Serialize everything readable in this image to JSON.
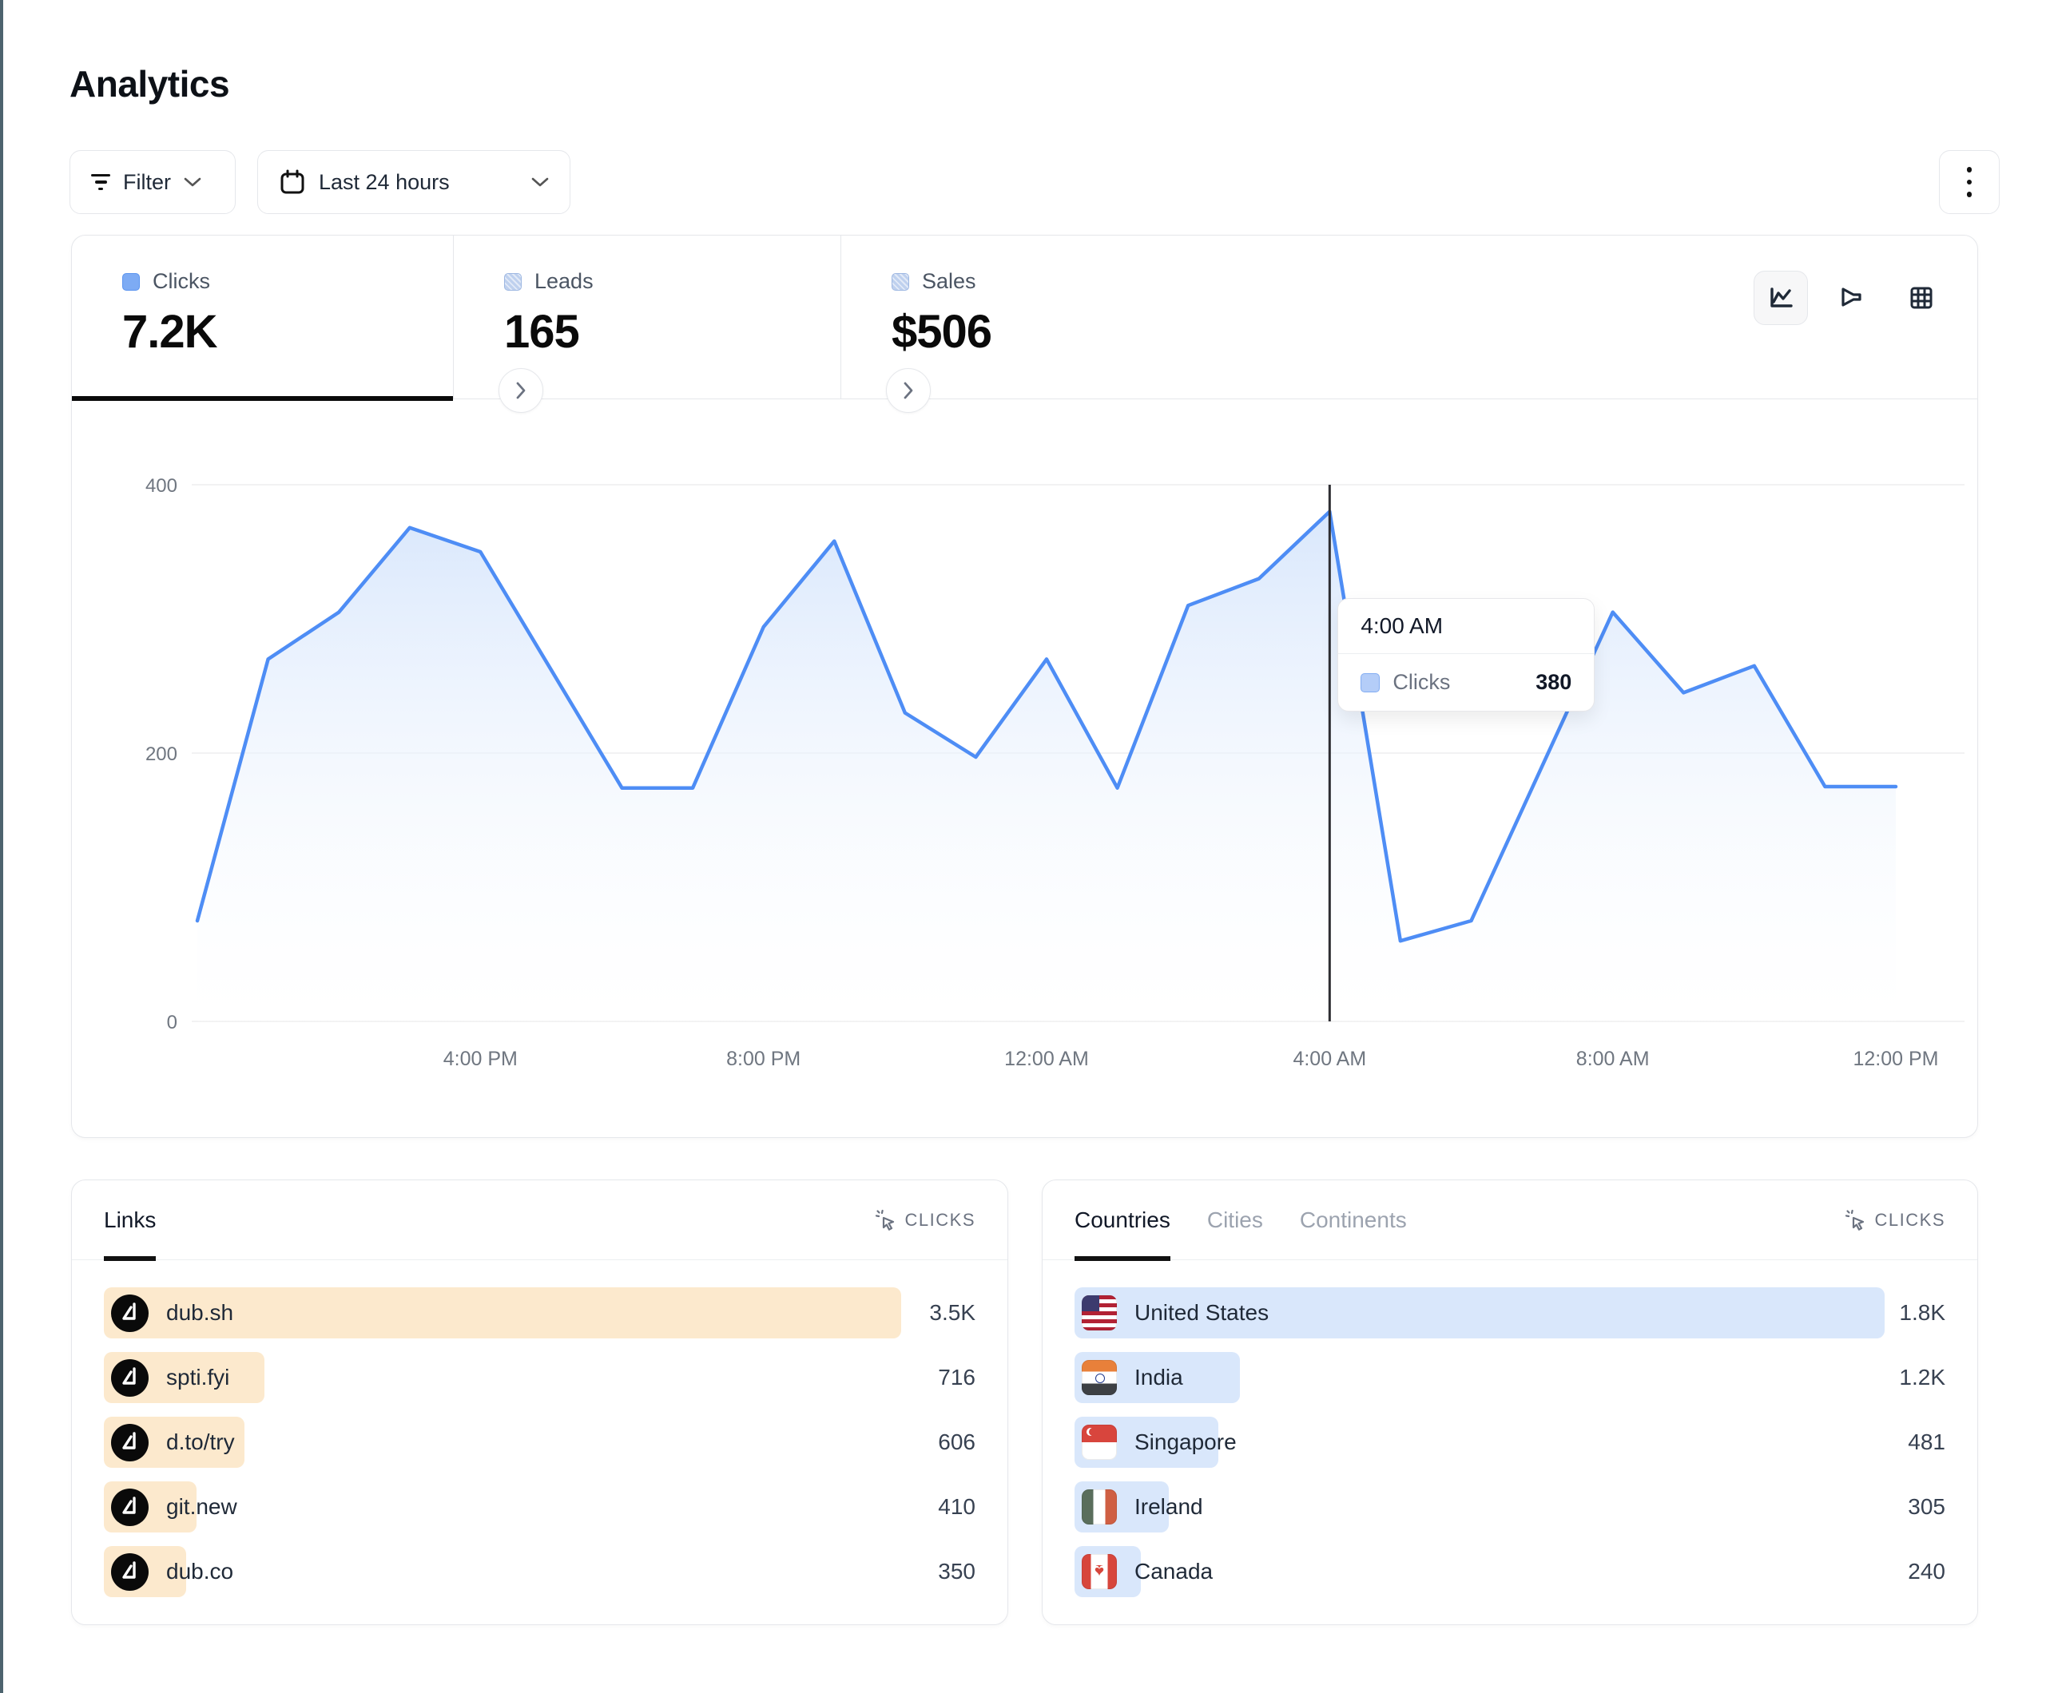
{
  "page": {
    "title": "Analytics"
  },
  "toolbar": {
    "filter_label": "Filter",
    "date_range_label": "Last 24 hours",
    "icons": [
      "filter-lines-icon",
      "calendar-icon",
      "chevron-down-icon",
      "kebab-menu-icon"
    ]
  },
  "stats": {
    "tabs": [
      {
        "label": "Clicks",
        "value": "7.2K",
        "active": true
      },
      {
        "label": "Leads",
        "value": "165",
        "active": false
      },
      {
        "label": "Sales",
        "value": "$506",
        "active": false
      }
    ],
    "view_toggle_icons": [
      "line-chart-icon",
      "funnel-chart-icon",
      "grid-table-icon"
    ],
    "selected_view": "line-chart"
  },
  "chart_data": {
    "type": "area",
    "title": "Clicks over the last 24 hours",
    "series": [
      {
        "name": "Clicks",
        "values": [
          75,
          270,
          305,
          368,
          350,
          262,
          174,
          174,
          294,
          358,
          230,
          197,
          270,
          174,
          310,
          330,
          380,
          60,
          75,
          190,
          305,
          245,
          265,
          175,
          175
        ]
      }
    ],
    "x_start_label": "12:00 PM",
    "x_tick_indices": [
      4,
      8,
      12,
      16,
      20,
      24
    ],
    "x_tick_labels": [
      "4:00 PM",
      "8:00 PM",
      "12:00 AM",
      "4:00 AM",
      "8:00 AM",
      "12:00 PM"
    ],
    "y_ticks": [
      0,
      200,
      400
    ],
    "ylim": [
      0,
      400
    ],
    "grid": "horizontal",
    "legend_position": "none",
    "hover": {
      "index": 16,
      "x_label": "4:00 AM",
      "series_label": "Clicks",
      "value": "380"
    },
    "colors": {
      "line": "#4e8df5",
      "area_top": "#d7e6fc",
      "area_bottom": "#ffffff",
      "crosshair": "#2e2e33",
      "grid": "#ededef",
      "tick_text": "#6f7680"
    }
  },
  "links_panel": {
    "tab_label": "Links",
    "metric_label": "CLICKS",
    "rows": [
      {
        "label": "dub.sh",
        "value": "3.5K",
        "bar_pct": 91.5
      },
      {
        "label": "spti.fyi",
        "value": "716",
        "bar_pct": 18.4
      },
      {
        "label": "d.to/try",
        "value": "606",
        "bar_pct": 16.1
      },
      {
        "label": "git.new",
        "value": "410",
        "bar_pct": 10.6
      },
      {
        "label": "dub.co",
        "value": "350",
        "bar_pct": 9.4
      }
    ]
  },
  "countries_panel": {
    "tabs": [
      "Countries",
      "Cities",
      "Continents"
    ],
    "active_tab": "Countries",
    "metric_label": "CLICKS",
    "rows": [
      {
        "label": "United States",
        "flag": "us-flag-icon",
        "value": "1.8K",
        "bar_pct": 93.0
      },
      {
        "label": "India",
        "flag": "india-flag-icon",
        "value": "1.2K",
        "bar_pct": 19.0
      },
      {
        "label": "Singapore",
        "flag": "singapore-flag-icon",
        "value": "481",
        "bar_pct": 16.5
      },
      {
        "label": "Ireland",
        "flag": "ireland-flag-icon",
        "value": "305",
        "bar_pct": 10.8
      },
      {
        "label": "Canada",
        "flag": "canada-flag-icon",
        "value": "240",
        "bar_pct": 7.6
      }
    ]
  },
  "colors": {
    "accent_blue": "#4e8df5",
    "bar_orange": "#fce9cd",
    "bar_blue": "#d9e7fb",
    "border": "#e5e7eb"
  }
}
